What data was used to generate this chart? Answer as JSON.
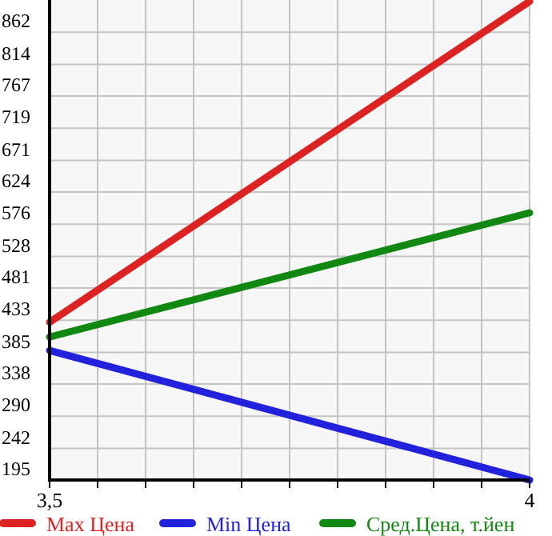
{
  "chart_data": {
    "type": "line",
    "x": [
      3.5,
      4
    ],
    "xlim": [
      3.5,
      4
    ],
    "xticks": [
      {
        "value": 3.5,
        "label": "3,5"
      },
      {
        "value": 3.55,
        "label": null
      },
      {
        "value": 3.6,
        "label": null
      },
      {
        "value": 3.65,
        "label": null
      },
      {
        "value": 3.7,
        "label": null
      },
      {
        "value": 3.75,
        "label": null
      },
      {
        "value": 3.8,
        "label": null
      },
      {
        "value": 3.85,
        "label": null
      },
      {
        "value": 3.9,
        "label": null
      },
      {
        "value": 3.95,
        "label": null
      },
      {
        "value": 4,
        "label": "4"
      }
    ],
    "ylim": [
      195,
      910
    ],
    "yticks": [
      195,
      242,
      290,
      338,
      385,
      433,
      481,
      528,
      576,
      624,
      671,
      719,
      767,
      814,
      862
    ],
    "grid": true,
    "legend": "bottom",
    "marker": "none",
    "line_style": "solid",
    "series": [
      {
        "name": "Max Цена",
        "color": "#dd2222",
        "values": [
          430,
          908
        ]
      },
      {
        "name": "Min Цена",
        "color": "#2222dd",
        "values": [
          388,
          195
        ]
      },
      {
        "name": "Сред.Цена, т.йен",
        "color": "#118811",
        "values": [
          408,
          593
        ]
      }
    ]
  }
}
